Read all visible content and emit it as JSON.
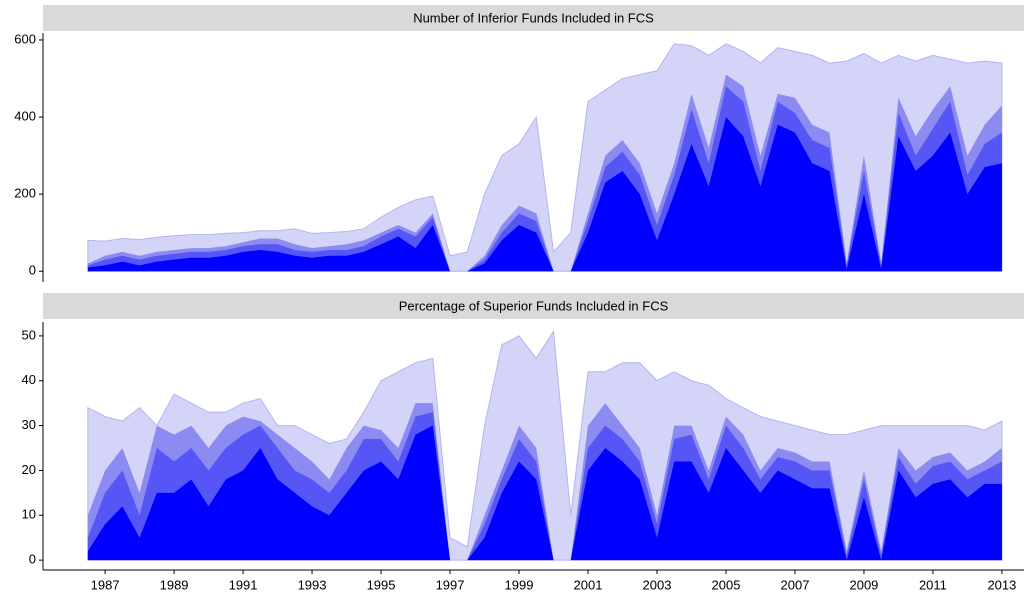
{
  "chart_data": [
    {
      "type": "area",
      "title": "Number of Inferior Funds Included in FCS",
      "x": [
        1986.5,
        1987,
        1987.5,
        1988,
        1988.5,
        1989,
        1989.5,
        1990,
        1990.5,
        1991,
        1991.5,
        1992,
        1992.5,
        1993,
        1993.5,
        1994,
        1994.5,
        1995,
        1995.5,
        1996,
        1996.5,
        1997,
        1997.5,
        1998,
        1998.5,
        1999,
        1999.5,
        2000,
        2000.5,
        2001,
        2001.5,
        2002,
        2002.5,
        2003,
        2003.5,
        2004,
        2004.5,
        2005,
        2005.5,
        2006,
        2006.5,
        2007,
        2007.5,
        2008,
        2008.5,
        2009,
        2009.5,
        2010,
        2010.5,
        2011,
        2011.5,
        2012,
        2012.5,
        2013
      ],
      "xlim": [
        1985.2,
        2013.64
      ],
      "ylim": [
        -28,
        618
      ],
      "yticks": [
        0,
        200,
        400,
        600
      ],
      "series": [
        {
          "color": "#d4d4f9",
          "values": [
            80,
            78,
            85,
            82,
            88,
            92,
            95,
            95,
            98,
            100,
            105,
            105,
            110,
            98,
            100,
            103,
            110,
            140,
            165,
            185,
            195,
            40,
            50,
            200,
            300,
            330,
            400,
            50,
            100,
            440,
            470,
            500,
            510,
            520,
            590,
            585,
            560,
            590,
            570,
            540,
            580,
            570,
            560,
            540,
            545,
            565,
            540,
            560,
            545,
            560,
            550,
            540,
            545,
            540
          ]
        },
        {
          "color": "#8b8bf2",
          "values": [
            20,
            40,
            50,
            40,
            50,
            55,
            60,
            60,
            65,
            75,
            85,
            85,
            70,
            60,
            65,
            70,
            80,
            100,
            120,
            100,
            150,
            0,
            0,
            40,
            120,
            170,
            150,
            0,
            0,
            150,
            300,
            340,
            280,
            150,
            280,
            460,
            320,
            510,
            480,
            300,
            460,
            450,
            380,
            360,
            20,
            300,
            20,
            450,
            350,
            420,
            480,
            300,
            380,
            430
          ]
        },
        {
          "color": "#5656f6",
          "values": [
            15,
            30,
            40,
            30,
            40,
            45,
            50,
            50,
            55,
            65,
            70,
            70,
            55,
            50,
            55,
            55,
            65,
            90,
            110,
            90,
            140,
            0,
            0,
            30,
            100,
            150,
            130,
            0,
            0,
            130,
            270,
            310,
            250,
            120,
            250,
            420,
            280,
            480,
            440,
            260,
            440,
            410,
            340,
            320,
            15,
            260,
            15,
            410,
            300,
            370,
            440,
            250,
            330,
            360
          ]
        },
        {
          "color": "#0000ff",
          "values": [
            10,
            15,
            25,
            15,
            25,
            30,
            35,
            35,
            40,
            50,
            55,
            50,
            40,
            35,
            40,
            40,
            50,
            70,
            90,
            60,
            120,
            0,
            0,
            20,
            80,
            120,
            100,
            0,
            0,
            100,
            230,
            260,
            200,
            80,
            200,
            330,
            220,
            400,
            350,
            220,
            380,
            360,
            280,
            260,
            5,
            200,
            5,
            350,
            260,
            300,
            360,
            200,
            270,
            280
          ]
        }
      ]
    },
    {
      "type": "area",
      "title": "Percentage of Superior Funds Included in FCS",
      "x": [
        1986.5,
        1987,
        1987.5,
        1988,
        1988.5,
        1989,
        1989.5,
        1990,
        1990.5,
        1991,
        1991.5,
        1992,
        1992.5,
        1993,
        1993.5,
        1994,
        1994.5,
        1995,
        1995.5,
        1996,
        1996.5,
        1997,
        1997.5,
        1998,
        1998.5,
        1999,
        1999.5,
        2000,
        2000.5,
        2001,
        2001.5,
        2002,
        2002.5,
        2003,
        2003.5,
        2004,
        2004.5,
        2005,
        2005.5,
        2006,
        2006.5,
        2007,
        2007.5,
        2008,
        2008.5,
        2009,
        2009.5,
        2010,
        2010.5,
        2011,
        2011.5,
        2012,
        2012.5,
        2013
      ],
      "xlim": [
        1985.2,
        2013.64
      ],
      "xticks": [
        1987,
        1989,
        1991,
        1993,
        1995,
        1997,
        1999,
        2001,
        2003,
        2005,
        2007,
        2009,
        2011,
        2013
      ],
      "ylim": [
        -2.2,
        53.1
      ],
      "yticks": [
        0,
        10,
        20,
        30,
        40,
        50
      ],
      "series": [
        {
          "color": "#d4d4f9",
          "values": [
            34,
            32,
            31,
            34,
            30,
            37,
            35,
            33,
            33,
            35,
            36,
            30,
            30,
            28,
            26,
            27,
            33,
            40,
            42,
            44,
            45,
            5,
            3,
            30,
            48,
            50,
            45,
            51,
            10,
            42,
            42,
            44,
            44,
            40,
            42,
            40,
            39,
            36,
            34,
            32,
            31,
            30,
            29,
            28,
            28,
            29,
            30,
            30,
            30,
            30,
            30,
            30,
            29,
            31
          ]
        },
        {
          "color": "#8b8bf2",
          "values": [
            10,
            20,
            25,
            15,
            30,
            28,
            30,
            25,
            30,
            32,
            31,
            28,
            25,
            22,
            18,
            25,
            30,
            29,
            25,
            35,
            35,
            0,
            0,
            10,
            20,
            30,
            25,
            0,
            0,
            30,
            35,
            30,
            25,
            10,
            30,
            30,
            20,
            32,
            28,
            20,
            25,
            24,
            22,
            22,
            2,
            20,
            2,
            25,
            20,
            23,
            24,
            20,
            22,
            25
          ]
        },
        {
          "color": "#5656f6",
          "values": [
            5,
            15,
            20,
            10,
            25,
            22,
            25,
            20,
            25,
            28,
            30,
            25,
            20,
            18,
            15,
            20,
            27,
            27,
            22,
            32,
            33,
            0,
            0,
            8,
            18,
            27,
            22,
            0,
            0,
            25,
            30,
            27,
            22,
            8,
            27,
            28,
            18,
            30,
            25,
            18,
            23,
            22,
            20,
            20,
            1,
            18,
            1,
            23,
            17,
            21,
            22,
            18,
            20,
            22
          ]
        },
        {
          "color": "#0000ff",
          "values": [
            2,
            8,
            12,
            5,
            15,
            15,
            18,
            12,
            18,
            20,
            25,
            18,
            15,
            12,
            10,
            15,
            20,
            22,
            18,
            28,
            30,
            0,
            0,
            5,
            15,
            22,
            18,
            0,
            0,
            20,
            25,
            22,
            18,
            5,
            22,
            22,
            15,
            25,
            20,
            15,
            20,
            18,
            16,
            16,
            0,
            14,
            0,
            20,
            14,
            17,
            18,
            14,
            17,
            17
          ]
        }
      ]
    }
  ]
}
